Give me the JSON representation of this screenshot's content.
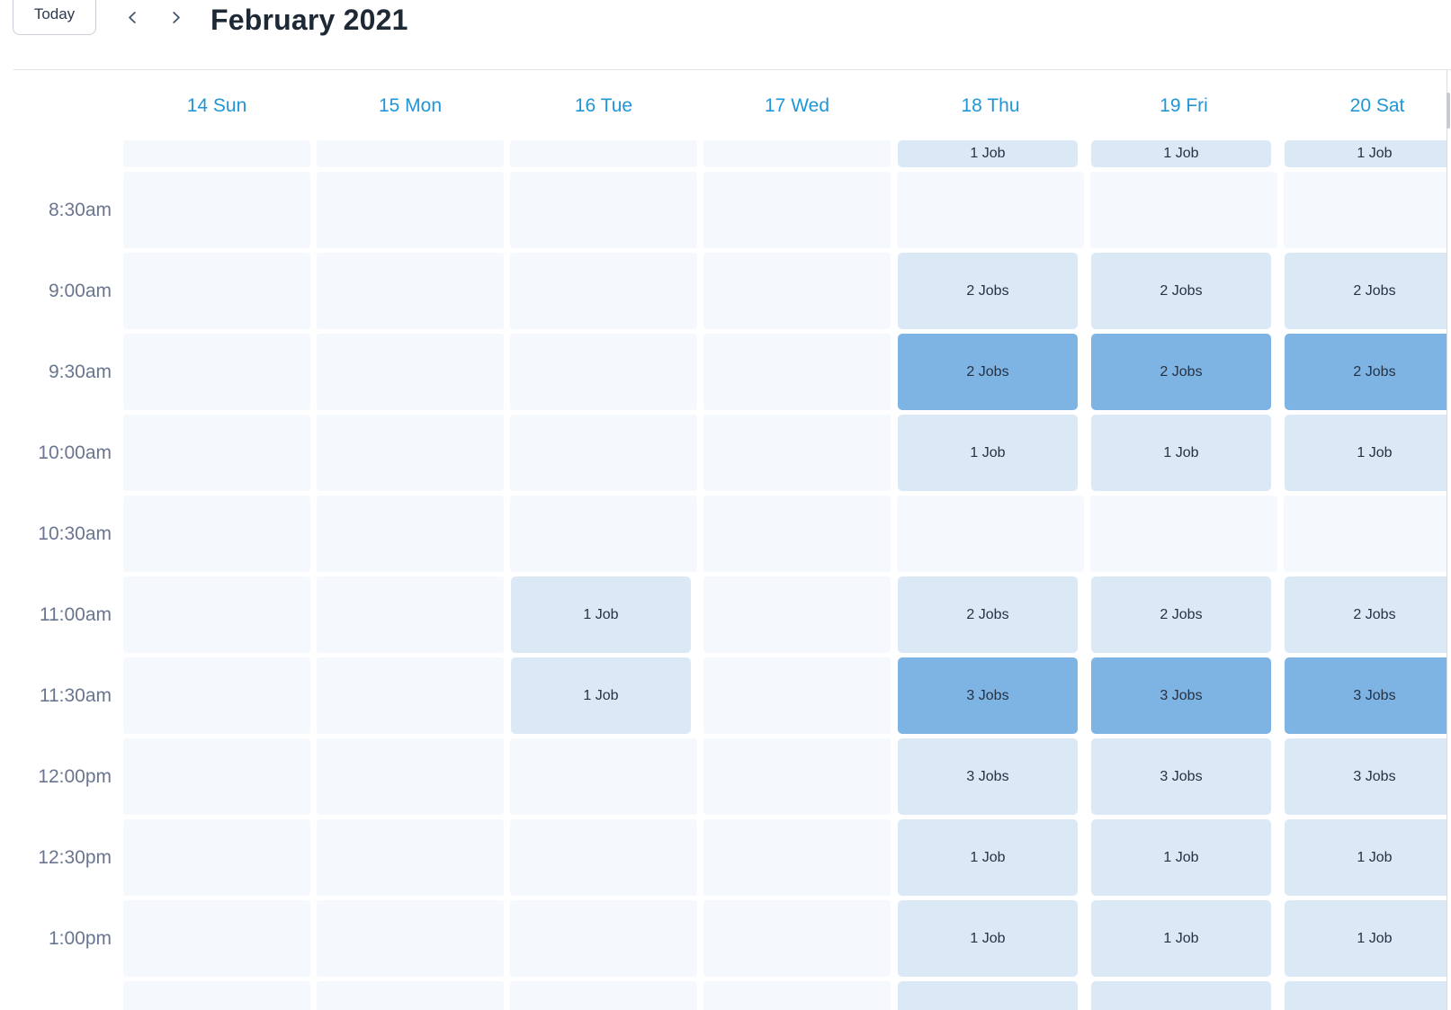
{
  "colors": {
    "day_header_blue": "#2196d6",
    "badge_light": "#dbe9f7",
    "badge_dark": "#7db4e4",
    "empty_cell": "#f5f9fd",
    "title_text": "#1e2936",
    "time_label_text": "#6a7590",
    "badge_text": "#273142"
  },
  "toolbar": {
    "today_label": "Today",
    "prev_icon": "chevron-left",
    "next_icon": "chevron-right",
    "title": "February 2021"
  },
  "week": {
    "days": [
      "14 Sun",
      "15 Mon",
      "16 Tue",
      "17 Wed",
      "18 Thu",
      "19 Fri",
      "20 Sat"
    ]
  },
  "grid": {
    "rows": [
      {
        "kind": "anytime",
        "time": "",
        "cells": [
          {
            "label": "",
            "tone": "empty"
          },
          {
            "label": "",
            "tone": "empty"
          },
          {
            "label": "",
            "tone": "empty"
          },
          {
            "label": "",
            "tone": "empty"
          },
          {
            "label": "1 Job",
            "tone": "light"
          },
          {
            "label": "1 Job",
            "tone": "light"
          },
          {
            "label": "1 Job",
            "tone": "light"
          }
        ]
      },
      {
        "kind": "timed",
        "time": "8:30am",
        "cells": [
          {
            "label": "",
            "tone": "empty"
          },
          {
            "label": "",
            "tone": "empty"
          },
          {
            "label": "",
            "tone": "empty"
          },
          {
            "label": "",
            "tone": "empty"
          },
          {
            "label": "",
            "tone": "empty"
          },
          {
            "label": "",
            "tone": "empty"
          },
          {
            "label": "",
            "tone": "empty"
          }
        ]
      },
      {
        "kind": "timed",
        "time": "9:00am",
        "cells": [
          {
            "label": "",
            "tone": "empty"
          },
          {
            "label": "",
            "tone": "empty"
          },
          {
            "label": "",
            "tone": "empty"
          },
          {
            "label": "",
            "tone": "empty"
          },
          {
            "label": "2 Jobs",
            "tone": "light"
          },
          {
            "label": "2 Jobs",
            "tone": "light"
          },
          {
            "label": "2 Jobs",
            "tone": "light"
          }
        ]
      },
      {
        "kind": "timed",
        "time": "9:30am",
        "cells": [
          {
            "label": "",
            "tone": "empty"
          },
          {
            "label": "",
            "tone": "empty"
          },
          {
            "label": "",
            "tone": "empty"
          },
          {
            "label": "",
            "tone": "empty"
          },
          {
            "label": "2 Jobs",
            "tone": "dark"
          },
          {
            "label": "2 Jobs",
            "tone": "dark"
          },
          {
            "label": "2 Jobs",
            "tone": "dark"
          }
        ]
      },
      {
        "kind": "timed",
        "time": "10:00am",
        "cells": [
          {
            "label": "",
            "tone": "empty"
          },
          {
            "label": "",
            "tone": "empty"
          },
          {
            "label": "",
            "tone": "empty"
          },
          {
            "label": "",
            "tone": "empty"
          },
          {
            "label": "1 Job",
            "tone": "light"
          },
          {
            "label": "1 Job",
            "tone": "light"
          },
          {
            "label": "1 Job",
            "tone": "light"
          }
        ]
      },
      {
        "kind": "timed",
        "time": "10:30am",
        "cells": [
          {
            "label": "",
            "tone": "empty"
          },
          {
            "label": "",
            "tone": "empty"
          },
          {
            "label": "",
            "tone": "empty"
          },
          {
            "label": "",
            "tone": "empty"
          },
          {
            "label": "",
            "tone": "empty"
          },
          {
            "label": "",
            "tone": "empty"
          },
          {
            "label": "",
            "tone": "empty"
          }
        ]
      },
      {
        "kind": "timed",
        "time": "11:00am",
        "cells": [
          {
            "label": "",
            "tone": "empty"
          },
          {
            "label": "",
            "tone": "empty"
          },
          {
            "label": "1 Job",
            "tone": "light"
          },
          {
            "label": "",
            "tone": "empty"
          },
          {
            "label": "2 Jobs",
            "tone": "light"
          },
          {
            "label": "2 Jobs",
            "tone": "light"
          },
          {
            "label": "2 Jobs",
            "tone": "light"
          }
        ]
      },
      {
        "kind": "timed",
        "time": "11:30am",
        "cells": [
          {
            "label": "",
            "tone": "empty"
          },
          {
            "label": "",
            "tone": "empty"
          },
          {
            "label": "1 Job",
            "tone": "light"
          },
          {
            "label": "",
            "tone": "empty"
          },
          {
            "label": "3 Jobs",
            "tone": "dark"
          },
          {
            "label": "3 Jobs",
            "tone": "dark"
          },
          {
            "label": "3 Jobs",
            "tone": "dark"
          }
        ]
      },
      {
        "kind": "timed",
        "time": "12:00pm",
        "cells": [
          {
            "label": "",
            "tone": "empty"
          },
          {
            "label": "",
            "tone": "empty"
          },
          {
            "label": "",
            "tone": "empty"
          },
          {
            "label": "",
            "tone": "empty"
          },
          {
            "label": "3 Jobs",
            "tone": "light"
          },
          {
            "label": "3 Jobs",
            "tone": "light"
          },
          {
            "label": "3 Jobs",
            "tone": "light"
          }
        ]
      },
      {
        "kind": "timed",
        "time": "12:30pm",
        "cells": [
          {
            "label": "",
            "tone": "empty"
          },
          {
            "label": "",
            "tone": "empty"
          },
          {
            "label": "",
            "tone": "empty"
          },
          {
            "label": "",
            "tone": "empty"
          },
          {
            "label": "1 Job",
            "tone": "light"
          },
          {
            "label": "1 Job",
            "tone": "light"
          },
          {
            "label": "1 Job",
            "tone": "light"
          }
        ]
      },
      {
        "kind": "timed",
        "time": "1:00pm",
        "cells": [
          {
            "label": "",
            "tone": "empty"
          },
          {
            "label": "",
            "tone": "empty"
          },
          {
            "label": "",
            "tone": "empty"
          },
          {
            "label": "",
            "tone": "empty"
          },
          {
            "label": "1 Job",
            "tone": "light"
          },
          {
            "label": "1 Job",
            "tone": "light"
          },
          {
            "label": "1 Job",
            "tone": "light"
          }
        ]
      },
      {
        "kind": "timed",
        "time": "",
        "cells": [
          {
            "label": "",
            "tone": "empty"
          },
          {
            "label": "",
            "tone": "empty"
          },
          {
            "label": "",
            "tone": "empty"
          },
          {
            "label": "",
            "tone": "empty"
          },
          {
            "label": "",
            "tone": "light"
          },
          {
            "label": "",
            "tone": "light"
          },
          {
            "label": "",
            "tone": "light"
          }
        ]
      }
    ]
  }
}
